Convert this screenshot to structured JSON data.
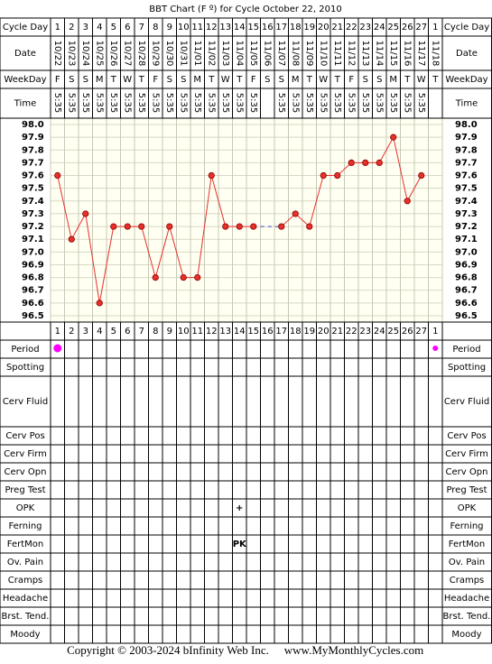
{
  "chart_data": {
    "type": "line",
    "title": "BBT Chart (F º) for Cycle October 22, 2010",
    "row_labels": {
      "cycle_day": "Cycle Day",
      "date": "Date",
      "weekday": "WeekDay",
      "time": "Time"
    },
    "cycle_days": [
      1,
      2,
      3,
      4,
      5,
      6,
      7,
      8,
      9,
      10,
      11,
      12,
      13,
      14,
      15,
      16,
      17,
      18,
      19,
      20,
      21,
      22,
      23,
      24,
      25,
      26,
      27,
      1
    ],
    "x": [
      "10/22",
      "10/23",
      "10/24",
      "10/25",
      "10/26",
      "10/27",
      "10/28",
      "10/29",
      "10/30",
      "10/31",
      "11/01",
      "11/02",
      "11/03",
      "11/04",
      "11/05",
      "11/06",
      "11/07",
      "11/08",
      "11/09",
      "11/10",
      "11/11",
      "11/12",
      "11/13",
      "11/14",
      "11/15",
      "11/16",
      "11/17",
      "11/18"
    ],
    "weekdays": [
      "F",
      "S",
      "S",
      "M",
      "T",
      "W",
      "T",
      "F",
      "S",
      "S",
      "M",
      "T",
      "W",
      "T",
      "F",
      "S",
      "S",
      "M",
      "T",
      "W",
      "T",
      "F",
      "S",
      "S",
      "M",
      "T",
      "W",
      "T"
    ],
    "times": [
      "5:35",
      "5:35",
      "5:35",
      "5:35",
      "5:35",
      "5:35",
      "5:35",
      "5:35",
      "5:35",
      "5:35",
      "5:35",
      "5:35",
      "5:35",
      "5:35",
      "5:35",
      null,
      "5:35",
      "5:35",
      "5:35",
      "5:35",
      "5:35",
      "5:35",
      "5:35",
      "5:35",
      "5:35",
      "5:35",
      "5:35",
      null
    ],
    "series": [
      {
        "color": "#e8302a",
        "values": [
          97.6,
          97.1,
          97.3,
          96.6,
          97.2,
          97.2,
          97.2,
          96.8,
          97.2,
          96.8,
          96.8,
          97.6,
          97.2,
          97.2,
          97.2,
          null,
          97.2,
          97.3,
          97.2,
          97.6,
          97.6,
          97.7,
          97.7,
          97.7,
          97.9,
          97.4,
          97.6,
          null
        ]
      }
    ],
    "ylim": [
      96.5,
      98.0
    ],
    "yticks": [
      {
        "value": 98.0,
        "label": "98.0"
      },
      97.9,
      97.8,
      97.7,
      97.6,
      97.5,
      97.4,
      97.3,
      97.2,
      97.1,
      {
        "value": 97.0,
        "label": "97.0"
      },
      96.9,
      96.8,
      96.7,
      96.6,
      96.5
    ],
    "grid": true,
    "observations": [
      {
        "label": "Period",
        "color": "#ff00ff",
        "values": [
          true,
          null,
          null,
          null,
          null,
          null,
          null,
          null,
          null,
          null,
          null,
          null,
          null,
          null,
          null,
          null,
          null,
          null,
          null,
          null,
          null,
          null,
          null,
          null,
          null,
          null,
          null,
          true
        ]
      },
      {
        "label": "Spotting"
      },
      {
        "label": "Cerv Fluid"
      },
      {
        "label": "Cerv Pos"
      },
      {
        "label": "Cerv Firm"
      },
      {
        "label": "Cerv Opn"
      },
      {
        "label": "Preg Test"
      },
      {
        "label": "OPK",
        "color": "#9933cc",
        "values": [
          null,
          null,
          null,
          null,
          null,
          null,
          null,
          null,
          null,
          null,
          null,
          null,
          null,
          "+",
          null,
          null,
          null,
          null,
          null,
          null,
          null,
          null,
          null,
          null,
          null,
          null,
          null,
          null
        ]
      },
      {
        "label": "Ferning"
      },
      {
        "label": "FertMon",
        "color": "#1a8a3a",
        "values": [
          null,
          null,
          null,
          null,
          null,
          null,
          null,
          null,
          null,
          null,
          null,
          null,
          null,
          "PK",
          null,
          null,
          null,
          null,
          null,
          null,
          null,
          null,
          null,
          null,
          null,
          null,
          null,
          null
        ]
      },
      {
        "label": "Ov. Pain"
      },
      {
        "label": "Cramps"
      },
      {
        "label": "Headache"
      },
      {
        "label": "Brst. Tend."
      },
      {
        "label": "Moody"
      }
    ]
  },
  "footer": {
    "copyright": "Copyright © 2003-2024 bInfinity Web Inc.",
    "site": "www.MyMonthlyCycles.com"
  }
}
